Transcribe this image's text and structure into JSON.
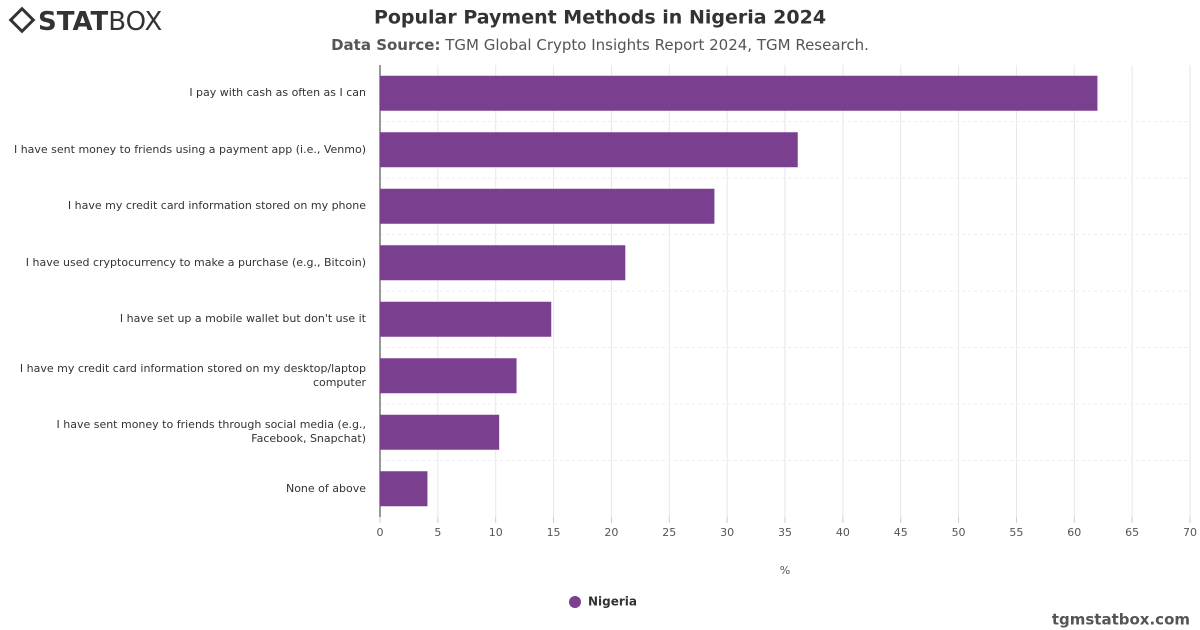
{
  "logo_bold": "STAT",
  "logo_light": "BOX",
  "footer": "tgmstatbox.com",
  "chart_data": {
    "type": "bar",
    "orientation": "horizontal",
    "title": "Popular Payment Methods in Nigeria 2024",
    "subtitle_label": "Data Source:",
    "subtitle": "TGM Global Crypto Insights Report 2024, TGM Research.",
    "x_label": "%",
    "categories": [
      "I pay with cash as often as I can",
      "I have sent money to friends using a payment app (i.e., Venmo)",
      "I have my credit card information stored on my phone",
      "I have used cryptocurrency to make a purchase (e.g., Bitcoin)",
      "I have set up a mobile wallet but don't use it",
      "I have my credit card information stored on my desktop/laptop computer",
      "I have sent money to friends through social media (e.g., Facebook, Snapchat)",
      "None of above"
    ],
    "series": [
      {
        "name": "Nigeria",
        "color": "#7b3f8f",
        "values": [
          62,
          36.1,
          28.9,
          21.2,
          14.8,
          11.8,
          10.3,
          4.1
        ]
      }
    ],
    "xlim": [
      0,
      70
    ],
    "xticks": [
      0,
      5,
      10,
      15,
      20,
      25,
      30,
      35,
      40,
      45,
      50,
      55,
      60,
      65,
      70
    ],
    "grid": true,
    "legend": "bottom"
  }
}
